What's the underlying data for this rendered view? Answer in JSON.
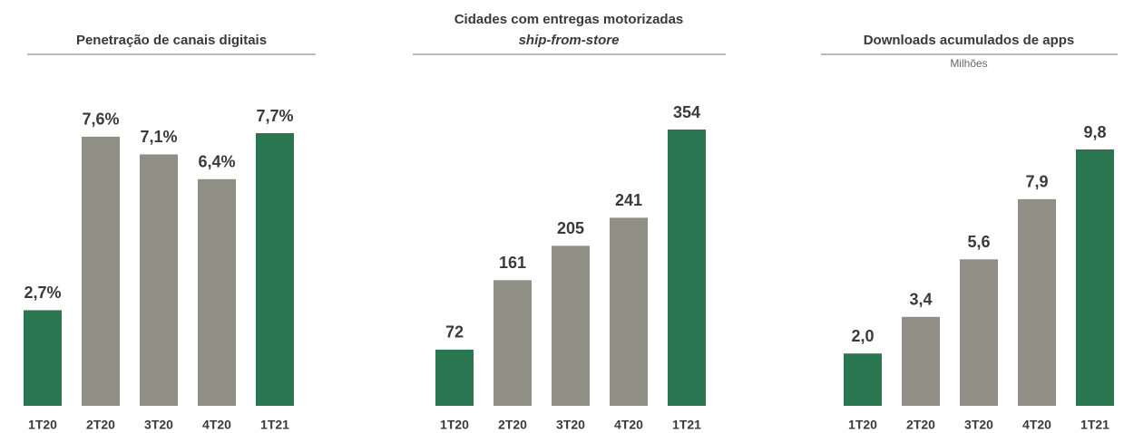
{
  "chart_data": [
    {
      "type": "bar",
      "title": "Penetração de canais digitais",
      "categories": [
        "1T20",
        "2T20",
        "3T20",
        "4T20",
        "1T21"
      ],
      "values": [
        2.7,
        7.6,
        7.1,
        6.4,
        7.7
      ],
      "value_labels": [
        "2,7%",
        "7,6%",
        "7,1%",
        "6,4%",
        "7,7%"
      ],
      "colors": [
        "#2a7650",
        "#8f8f86",
        "#8f8f86",
        "#8f8f86",
        "#2a7650"
      ]
    },
    {
      "type": "bar",
      "title": "Cidades com entregas motorizadas",
      "subtitle": "ship-from-store",
      "categories": [
        "1T20",
        "2T20",
        "3T20",
        "4T20",
        "1T21"
      ],
      "values": [
        72,
        161,
        205,
        241,
        354
      ],
      "colors": [
        "#2a7650",
        "#8f8f86",
        "#8f8f86",
        "#8f8f86",
        "#2a7650"
      ]
    },
    {
      "type": "bar",
      "title": "Downloads acumulados de apps",
      "subtitle": "Milhões",
      "categories": [
        "1T20",
        "2T20",
        "3T20",
        "4T20",
        "1T21"
      ],
      "values": [
        2.0,
        3.4,
        5.6,
        7.9,
        9.8
      ],
      "value_labels": [
        "2,0",
        "3,4",
        "5,6",
        "7,9",
        "9,8"
      ],
      "colors": [
        "#2a7650",
        "#8f8f86",
        "#8f8f86",
        "#8f8f86",
        "#2a7650"
      ]
    }
  ]
}
